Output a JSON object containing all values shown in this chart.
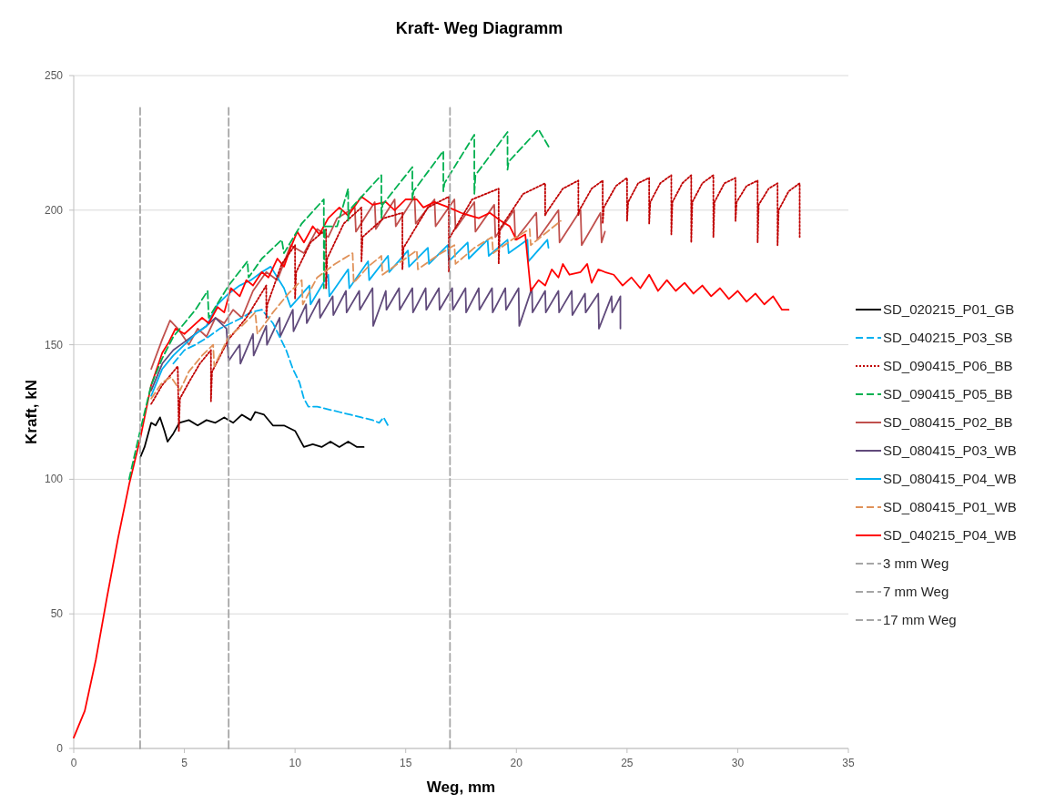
{
  "chart_data": {
    "type": "line",
    "title": "Kraft- Weg Diagramm",
    "xlabel": "Weg, mm",
    "ylabel": "Kraft, kN",
    "xlim": [
      0,
      35
    ],
    "xticks": [
      0,
      5,
      10,
      15,
      20,
      25,
      30,
      35
    ],
    "ylim": [
      0,
      250
    ],
    "yticks": [
      0,
      50,
      100,
      150,
      200,
      250
    ],
    "grid": "y",
    "legend": "right",
    "series": [
      {
        "name": "SD_020215_P01_GB",
        "color": "#000000",
        "line_style": "solid",
        "x": [
          3,
          3.2,
          3.5,
          3.7,
          3.9,
          4.1,
          4.24,
          4.5,
          4.77,
          5.2,
          5.6,
          6.0,
          6.4,
          6.8,
          7.2,
          7.6,
          8.0,
          8.2,
          8.6,
          9.0,
          9.5,
          10.0,
          10.4,
          10.8,
          11.2,
          11.6,
          12.0,
          12.4,
          12.8,
          13.1
        ],
        "values": [
          108,
          112,
          121,
          120,
          123,
          118,
          114,
          117,
          121,
          122,
          120,
          122,
          121,
          123,
          121,
          124,
          122,
          125,
          124,
          120,
          120,
          118,
          112,
          113,
          112,
          114,
          112,
          114,
          112,
          112
        ]
      },
      {
        "name": "SD_040215_P03_SB",
        "color": "#00b0f0",
        "line_style": "dashed",
        "x": [
          4.5,
          5,
          5.5,
          6.1,
          6.6,
          7.1,
          7.6,
          8.0,
          8.5,
          9.0,
          9.3,
          9.6,
          9.9,
          10.2,
          10.4,
          10.6,
          11,
          11.5,
          12,
          12.5,
          13,
          13.5,
          13.8,
          14.0,
          14.2
        ],
        "values": [
          143,
          148,
          150,
          153,
          156,
          158,
          160,
          162,
          163,
          158,
          153,
          148,
          141,
          136,
          130,
          127,
          127,
          126,
          125,
          124,
          123,
          122,
          121,
          123,
          120
        ]
      },
      {
        "name": "SD_090415_P06_BB",
        "color": "#c00000",
        "line_style": "dotted",
        "x": [
          3.5,
          4,
          4.5,
          4.7,
          4.75,
          4.8,
          5.2,
          5.7,
          6.2,
          6.2,
          6.25,
          7,
          7.8,
          8.7,
          8.7,
          8.75,
          9.4,
          10,
          10,
          10.05,
          10.7,
          11.4,
          11.4,
          11.45,
          12.2,
          13,
          13,
          13.05,
          14,
          14.85,
          14.85,
          14.9,
          16,
          16.95,
          16.95,
          17,
          18,
          19.2,
          19.2,
          19.25,
          20.3,
          21.3,
          21.3,
          21.35,
          22.1,
          22.8,
          22.8,
          22.85,
          23.4,
          23.9,
          23.9,
          23.95,
          24.5,
          25,
          25,
          25.05,
          25.5,
          26,
          26,
          26.05,
          26.5,
          27,
          27,
          27.05,
          27.5,
          27.9,
          27.9,
          27.95,
          28.4,
          28.9,
          28.9,
          28.95,
          29.4,
          29.9,
          29.9,
          29.95,
          30.4,
          30.9,
          30.9,
          30.95,
          31.4,
          31.8,
          31.8,
          31.85,
          32.3,
          32.8,
          32.8
        ],
        "values": [
          128,
          135,
          140,
          142,
          118,
          130,
          136,
          143,
          148,
          129,
          140,
          152,
          160,
          172,
          160,
          165,
          180,
          187,
          167,
          177,
          188,
          193,
          171,
          182,
          195,
          201,
          181,
          190,
          197,
          199,
          178,
          186,
          201,
          205,
          177,
          190,
          204,
          208,
          180,
          193,
          206,
          210,
          198,
          199,
          208,
          211,
          198,
          200,
          208,
          211,
          195,
          201,
          209,
          212,
          196,
          203,
          210,
          212,
          195,
          203,
          210,
          213,
          191,
          203,
          210,
          213,
          188,
          203,
          210,
          213,
          190,
          203,
          210,
          212,
          196,
          203,
          209,
          211,
          188,
          202,
          208,
          210,
          187,
          200,
          207,
          210,
          190
        ]
      },
      {
        "name": "SD_090415_P05_BB",
        "color": "#00b050",
        "line_style": "dashed",
        "x": [
          2.5,
          3,
          3.5,
          4,
          4.5,
          5,
          5.5,
          6.05,
          6.1,
          7,
          7.85,
          7.9,
          8.5,
          9.4,
          9.5,
          10.3,
          11.3,
          11.3,
          11.35,
          11.9,
          12.4,
          12.4,
          12.45,
          13.9,
          13.9,
          13.95,
          15.3,
          15.3,
          15.35,
          16.7,
          16.7,
          16.75,
          18.1,
          18.1,
          18.15,
          19.6,
          19.6,
          19.65,
          21.0,
          21.5
        ],
        "values": [
          100,
          118,
          135,
          145,
          153,
          158,
          163,
          170,
          160,
          172,
          181,
          175,
          182,
          189,
          184,
          195,
          204,
          171,
          194,
          194,
          208,
          196,
          200,
          213,
          197,
          202,
          216,
          204,
          207,
          222,
          207,
          210,
          228,
          206,
          213,
          229,
          215,
          218,
          230,
          223
        ]
      },
      {
        "name": "SD_080415_P02_BB",
        "color": "#c0504d",
        "line_style": "solid",
        "x": [
          3.5,
          4,
          4.35,
          4.7,
          5.2,
          5.6,
          6.0,
          6.4,
          6.8,
          7.2,
          7.6,
          8.1,
          8.7,
          9.2,
          9.8,
          10.4,
          11.0,
          11.5,
          11.9,
          12.7,
          12.75,
          13.6,
          13.65,
          14.5,
          14.55,
          15.4,
          15.45,
          16.3,
          16.35,
          17.2,
          17.25,
          18.1,
          18.15,
          19.0,
          19.05,
          19.9,
          19.95,
          20.9,
          20.95,
          21.9,
          21.95,
          22.9,
          22.95,
          23.8,
          23.85,
          24.0
        ],
        "values": [
          141,
          152,
          159,
          156,
          150,
          156,
          153,
          160,
          158,
          163,
          160,
          170,
          177,
          174,
          187,
          184,
          193,
          190,
          197,
          201,
          192,
          203,
          193,
          204,
          194,
          205,
          195,
          204,
          194,
          204,
          193,
          203,
          192,
          202,
          190,
          200,
          189,
          199,
          189,
          200,
          188,
          200,
          187,
          199,
          188,
          192
        ]
      },
      {
        "name": "SD_080415_P03_WB",
        "color": "#604a7b",
        "line_style": "solid",
        "x": [
          3.5,
          4,
          4.5,
          5,
          5.5,
          6,
          6.4,
          6.9,
          7.0,
          7.5,
          7.53,
          8.1,
          8.13,
          8.7,
          8.73,
          9.3,
          9.33,
          9.9,
          9.93,
          10.5,
          10.53,
          11.1,
          11.13,
          11.7,
          11.73,
          12.3,
          12.33,
          12.9,
          12.93,
          13.5,
          13.53,
          14.1,
          14.13,
          14.7,
          14.73,
          15.3,
          15.33,
          15.9,
          15.93,
          16.5,
          16.53,
          17.1,
          17.13,
          17.7,
          17.73,
          18.3,
          18.33,
          18.9,
          18.93,
          19.5,
          19.53,
          20.1,
          20.13,
          20.7,
          20.73,
          21.3,
          21.33,
          21.9,
          21.93,
          22.5,
          22.53,
          23.1,
          23.13,
          23.7,
          23.73,
          24.3,
          24.33,
          24.7,
          24.7
        ],
        "values": [
          133,
          143,
          148,
          151,
          154,
          157,
          160,
          156,
          144,
          150,
          143,
          154,
          146,
          157,
          150,
          160,
          153,
          163,
          155,
          165,
          158,
          167,
          160,
          168,
          161,
          170,
          162,
          170,
          163,
          171,
          157,
          170,
          163,
          171,
          163,
          171,
          162,
          171,
          163,
          171,
          163,
          171,
          163,
          171,
          162,
          171,
          163,
          171,
          162,
          171,
          163,
          171,
          157,
          171,
          162,
          170,
          162,
          170,
          162,
          170,
          161,
          169,
          162,
          169,
          156,
          168,
          162,
          168,
          156
        ]
      },
      {
        "name": "SD_080415_P04_WB",
        "color": "#00b0f0",
        "line_style": "solid",
        "x": [
          3.5,
          4,
          4.5,
          5,
          5.5,
          6,
          6.5,
          7,
          7.5,
          8,
          8.5,
          8.9,
          9.5,
          9.8,
          10.65,
          10.7,
          11.5,
          11.55,
          12.4,
          12.45,
          13.3,
          13.35,
          14.2,
          14.25,
          15.1,
          15.15,
          16,
          16.05,
          16.9,
          16.95,
          17.8,
          17.85,
          18.7,
          18.75,
          19.6,
          19.65,
          20.5,
          20.55,
          21.4,
          21.45
        ],
        "values": [
          131,
          141,
          146,
          150,
          154,
          157,
          165,
          169,
          172,
          174,
          177,
          179,
          171,
          164,
          172,
          165,
          176,
          168,
          178,
          171,
          181,
          174,
          183,
          177,
          185,
          179,
          186,
          180,
          187,
          181,
          188,
          182,
          189,
          183,
          189,
          184,
          189,
          181,
          189,
          186
        ]
      },
      {
        "name": "SD_080415_P01_WB",
        "color": "#e0925a",
        "line_style": "dashed",
        "x": [
          3.5,
          4,
          4.4,
          4.8,
          5.2,
          5.8,
          6.3,
          6.35,
          7,
          7.6,
          8.2,
          8.3,
          9,
          9.7,
          10.3,
          10.35,
          11.0,
          11.8,
          12.6,
          12.65,
          13.3,
          13.9,
          13.95,
          14.8,
          15.5,
          15.55,
          16.4,
          17.2,
          17.25,
          18.1,
          18.9,
          18.95,
          19.8,
          20.6,
          20.65,
          21.4,
          22.0
        ],
        "values": [
          130,
          136,
          138,
          133,
          140,
          146,
          150,
          142,
          153,
          157,
          162,
          154,
          162,
          169,
          174,
          165,
          175,
          180,
          184,
          173,
          179,
          183,
          176,
          181,
          185,
          178,
          183,
          187,
          180,
          186,
          190,
          184,
          189,
          193,
          187,
          192,
          196
        ]
      },
      {
        "name": "SD_040215_P04_WB",
        "color": "#ff0000",
        "line_style": "solid",
        "x": [
          0,
          0.5,
          1,
          1.5,
          2,
          2.5,
          3,
          3.5,
          4,
          4.3,
          4.6,
          5.0,
          5.4,
          5.8,
          6.1,
          6.5,
          6.8,
          7.1,
          7.5,
          7.8,
          8.1,
          8.5,
          8.8,
          9.2,
          9.5,
          9.8,
          10.1,
          10.4,
          10.8,
          11.1,
          11.5,
          12.0,
          12.4,
          13.0,
          13.5,
          14.1,
          14.5,
          15.0,
          15.5,
          15.8,
          16.3,
          16.95,
          17.5,
          18.3,
          18.8,
          19.3,
          19.7,
          20.0,
          20.4,
          20.65,
          21.0,
          21.3,
          21.6,
          21.9,
          22.1,
          22.4,
          22.9,
          23.2,
          23.4,
          23.7,
          24.0,
          24.4,
          24.8,
          25.2,
          25.6,
          26.0,
          26.4,
          26.8,
          27.2,
          27.6,
          28.0,
          28.4,
          28.8,
          29.2,
          29.6,
          30.0,
          30.4,
          30.8,
          31.2,
          31.6,
          32.0,
          32.3
        ],
        "values": [
          4,
          14,
          33,
          56,
          78,
          98,
          115,
          135,
          147,
          151,
          156,
          154,
          157,
          160,
          158,
          164,
          162,
          171,
          168,
          174,
          172,
          177,
          175,
          182,
          179,
          186,
          192,
          188,
          194,
          191,
          197,
          201,
          198,
          205,
          202,
          203,
          200,
          204,
          204,
          201,
          203,
          201,
          199,
          197,
          199,
          196,
          194,
          189,
          191,
          170,
          174,
          172,
          178,
          175,
          180,
          176,
          177,
          180,
          173,
          178,
          177,
          176,
          172,
          175,
          171,
          176,
          170,
          174,
          170,
          173,
          169,
          172,
          168,
          171,
          167,
          170,
          166,
          169,
          165,
          168,
          163,
          163
        ]
      },
      {
        "name": "3 mm Weg",
        "color": "#a6a6a6",
        "line_style": "dashed",
        "x": [
          3,
          3
        ],
        "values": [
          0,
          238
        ]
      },
      {
        "name": "7 mm Weg",
        "color": "#a6a6a6",
        "line_style": "dashed",
        "x": [
          7,
          7
        ],
        "values": [
          0,
          238
        ]
      },
      {
        "name": "17 mm Weg",
        "color": "#a6a6a6",
        "line_style": "dashed",
        "x": [
          17,
          17
        ],
        "values": [
          0,
          238
        ]
      }
    ]
  }
}
